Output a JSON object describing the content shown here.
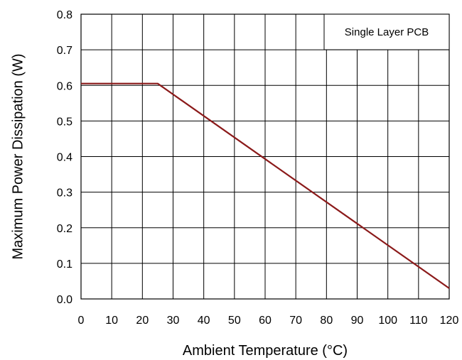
{
  "chart_data": {
    "type": "line",
    "title": "",
    "xlabel": "Ambient Temperature (°C)",
    "ylabel": "Maximum Power Dissipation (W)",
    "xlim": [
      0,
      120
    ],
    "ylim": [
      0,
      0.8
    ],
    "x_ticks": [
      0,
      10,
      20,
      30,
      40,
      50,
      60,
      70,
      80,
      90,
      100,
      110,
      120
    ],
    "x_tick_labels": [
      "0",
      "10",
      "20",
      "30",
      "40",
      "50",
      "60",
      "70",
      "80",
      "90",
      "100",
      "110",
      "120"
    ],
    "y_ticks": [
      0,
      0.1,
      0.2,
      0.3,
      0.4,
      0.5,
      0.6,
      0.7,
      0.8
    ],
    "y_tick_labels": [
      "0.0",
      "0.1",
      "0.2",
      "0.3",
      "0.4",
      "0.5",
      "0.6",
      "0.7",
      "0.8"
    ],
    "grid": true,
    "annotation": "Single Layer PCB",
    "annotation_position": "top-right",
    "line_color": "#8b1a1a",
    "series": [
      {
        "x": [
          0,
          25,
          120
        ],
        "y": [
          0.605,
          0.605,
          0.03
        ]
      }
    ]
  }
}
